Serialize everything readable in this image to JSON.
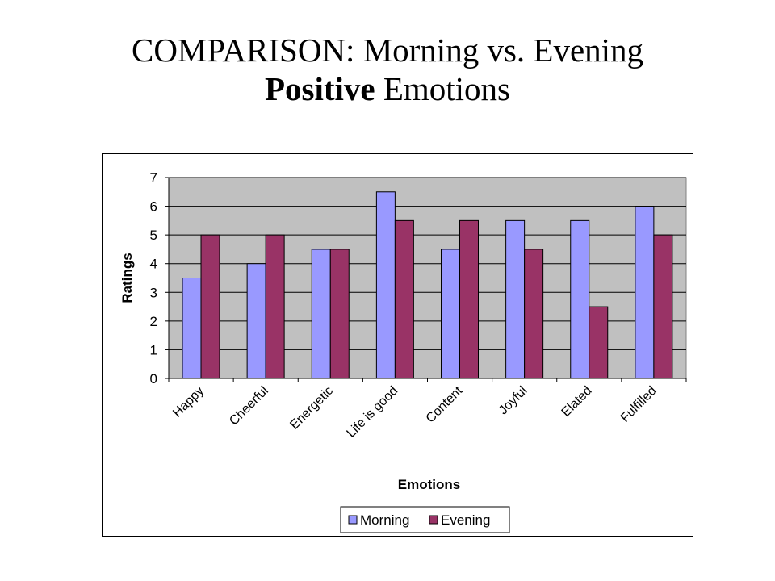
{
  "title": {
    "line1": "COMPARISON: Morning vs. Evening",
    "line2_bold": "Positive",
    "line2_rest": " Emotions"
  },
  "chart_data": {
    "type": "bar",
    "categories": [
      "Happy",
      "Cheerful",
      "Energetic",
      "Life is good",
      "Content",
      "Joyful",
      "Elated",
      "Fulfilled"
    ],
    "series": [
      {
        "name": "Morning",
        "values": [
          3.5,
          4,
          4.5,
          6.5,
          4.5,
          5.5,
          5.5,
          6
        ],
        "color": "#9999ff"
      },
      {
        "name": "Evening",
        "values": [
          5,
          5,
          4.5,
          5.5,
          5.5,
          4.5,
          2.5,
          5
        ],
        "color": "#993366"
      }
    ],
    "xlabel": "Emotions",
    "ylabel": "Ratings",
    "ylim": [
      0,
      7
    ],
    "yticks": [
      "0",
      "1",
      "2",
      "3",
      "4",
      "5",
      "6",
      "7"
    ],
    "grid": true,
    "plot_background": "#c0c0c0",
    "legend_position": "bottom"
  }
}
